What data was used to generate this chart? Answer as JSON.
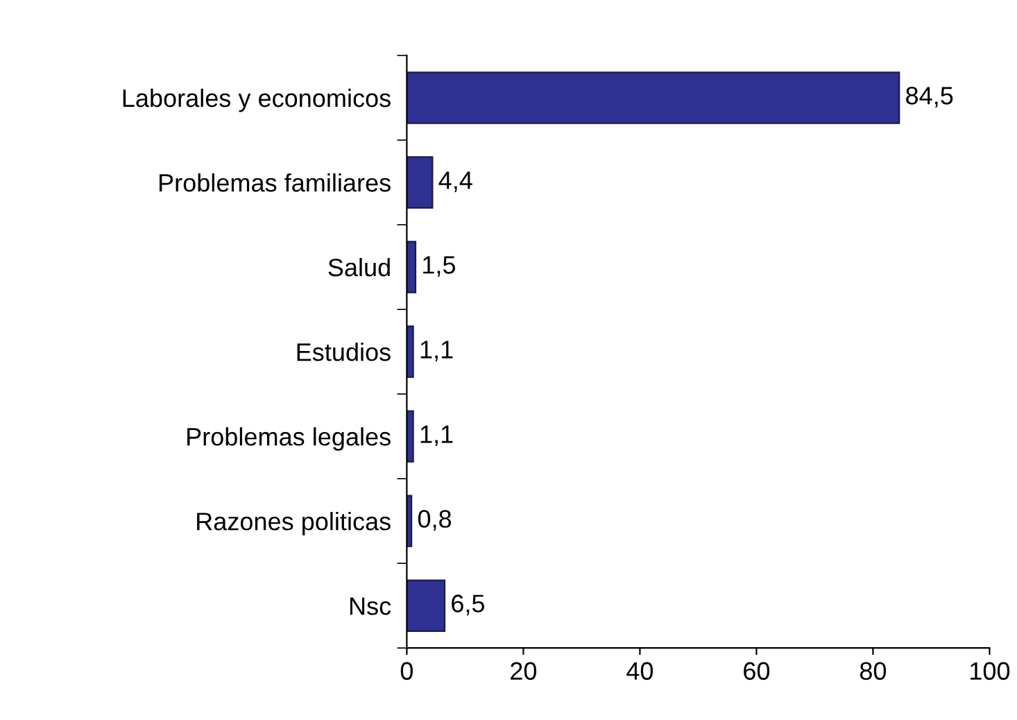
{
  "chart_data": {
    "type": "bar",
    "orientation": "horizontal",
    "categories": [
      "Laborales y economicos",
      "Problemas familiares",
      "Salud",
      "Estudios",
      "Problemas legales",
      "Razones politicas",
      "Nsc"
    ],
    "values": [
      84.5,
      4.4,
      1.5,
      1.1,
      1.1,
      0.8,
      6.5
    ],
    "value_labels": [
      "84,5",
      "4,4",
      "1,5",
      "1,1",
      "1,1",
      "0,8",
      "6,5"
    ],
    "color": "#2e3192",
    "xlim": [
      0,
      100
    ],
    "xticks": [
      0,
      20,
      40,
      60,
      80,
      100
    ],
    "grid": false,
    "legend": false
  }
}
